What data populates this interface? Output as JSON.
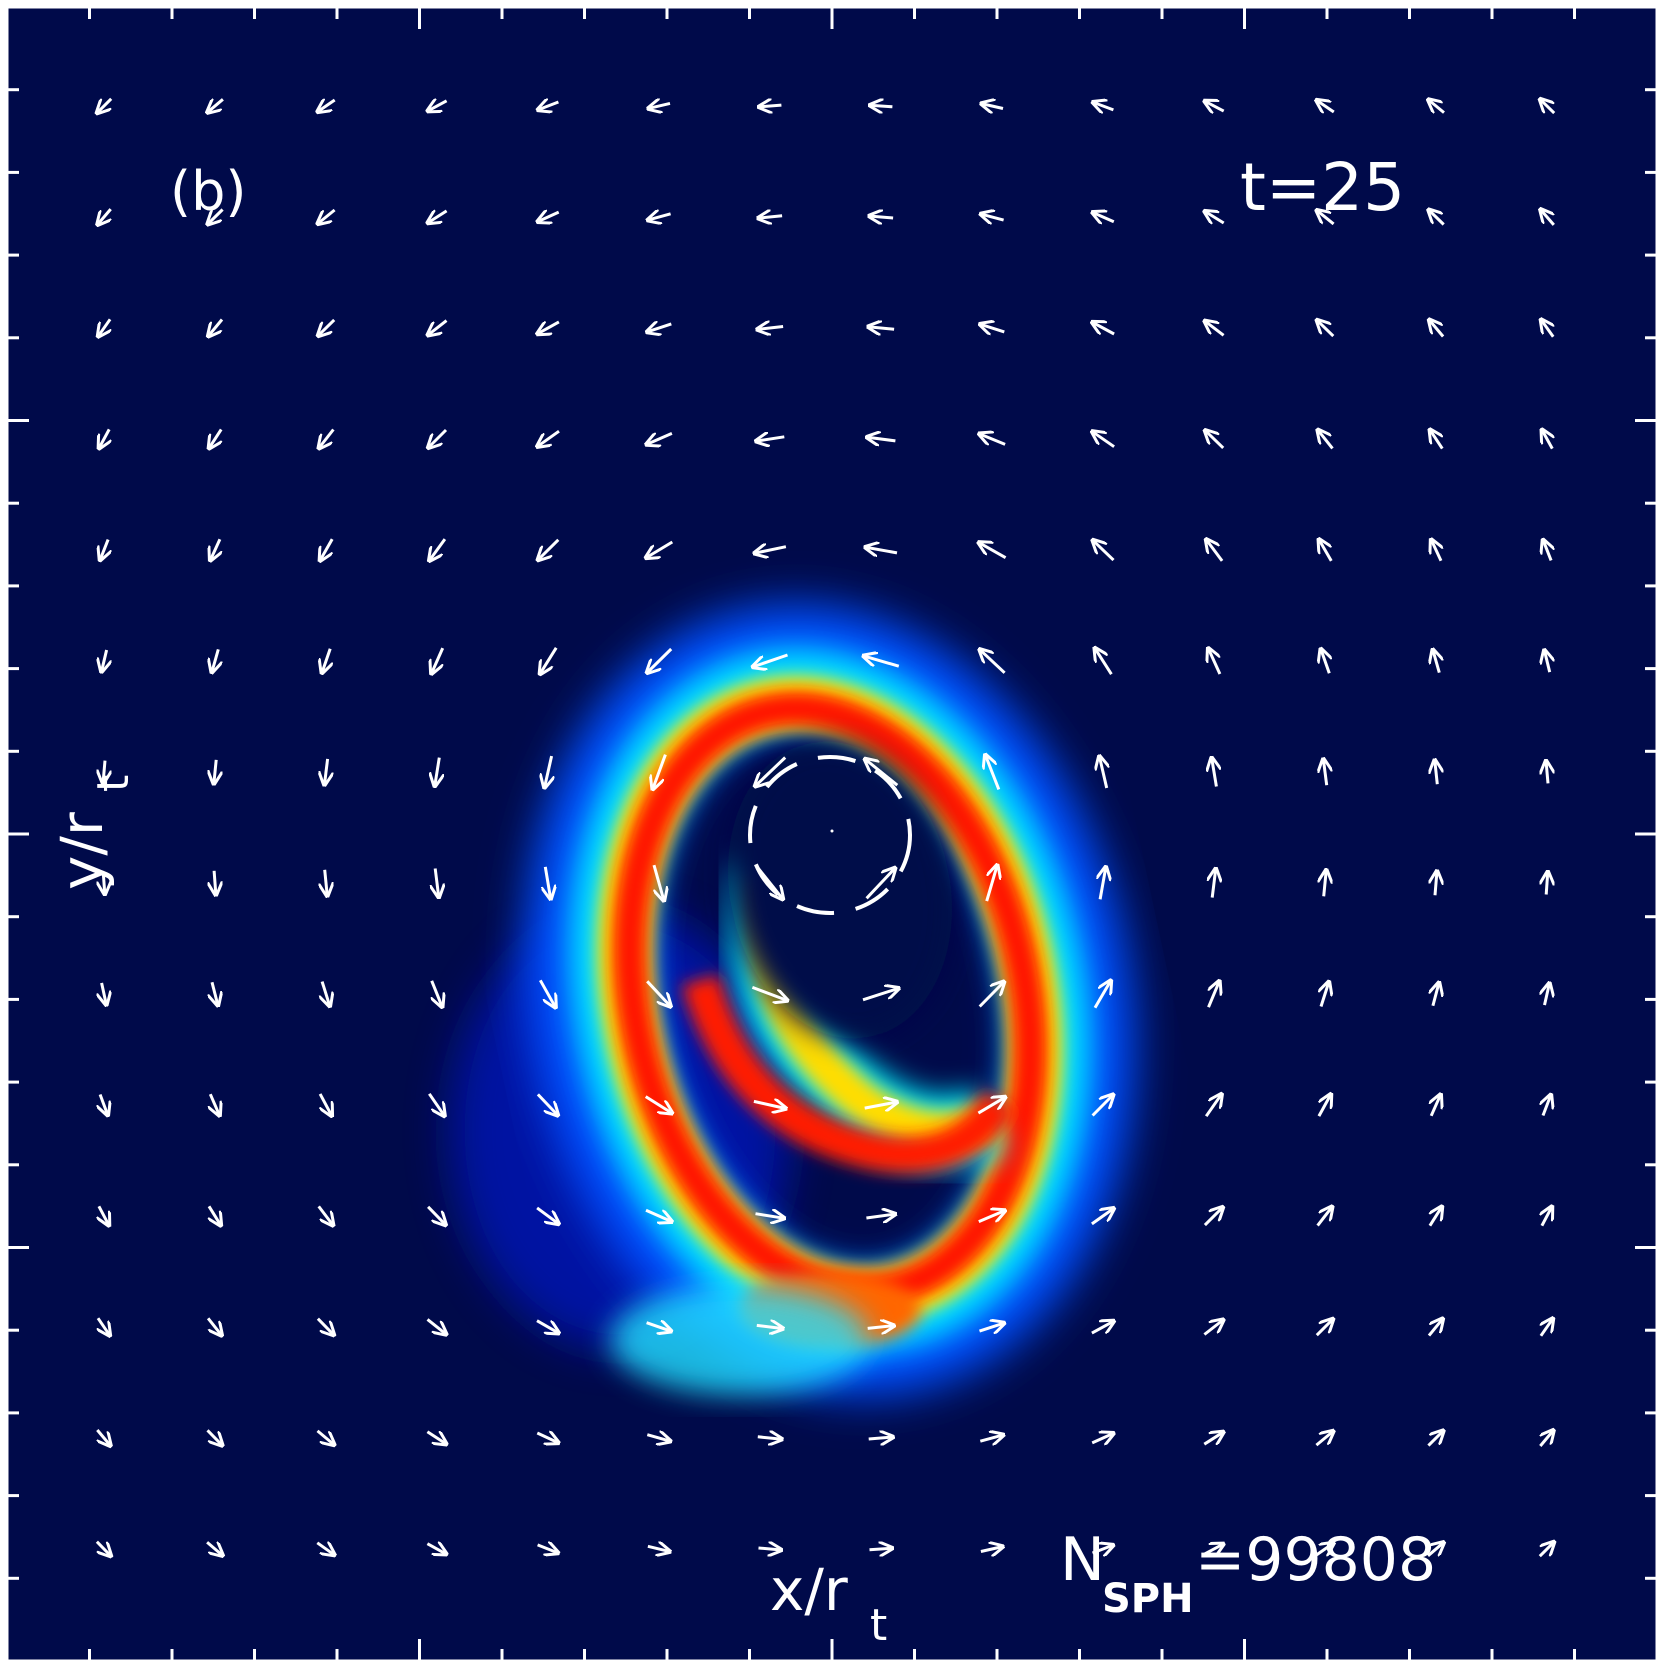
{
  "panel_label": "(b)",
  "time_label": "t=25",
  "x_axis_label": "x/r",
  "x_axis_subscript": "t",
  "y_axis_label": "y/r",
  "y_axis_subscript": "t",
  "particle_label": "N",
  "particle_subscript": "SPH",
  "particle_value": "=99808",
  "colors": {
    "background": "#000a4a",
    "frame": "#ffffff",
    "arrows": "#ffffff",
    "colormap": [
      "#0000b0",
      "#0060ff",
      "#00ffff",
      "#ffff00",
      "#ff8000",
      "#ff0000"
    ]
  },
  "velocity_field": {
    "grid": [
      14,
      14
    ],
    "center_description": "orbit around central mass (dashed circle)"
  }
}
